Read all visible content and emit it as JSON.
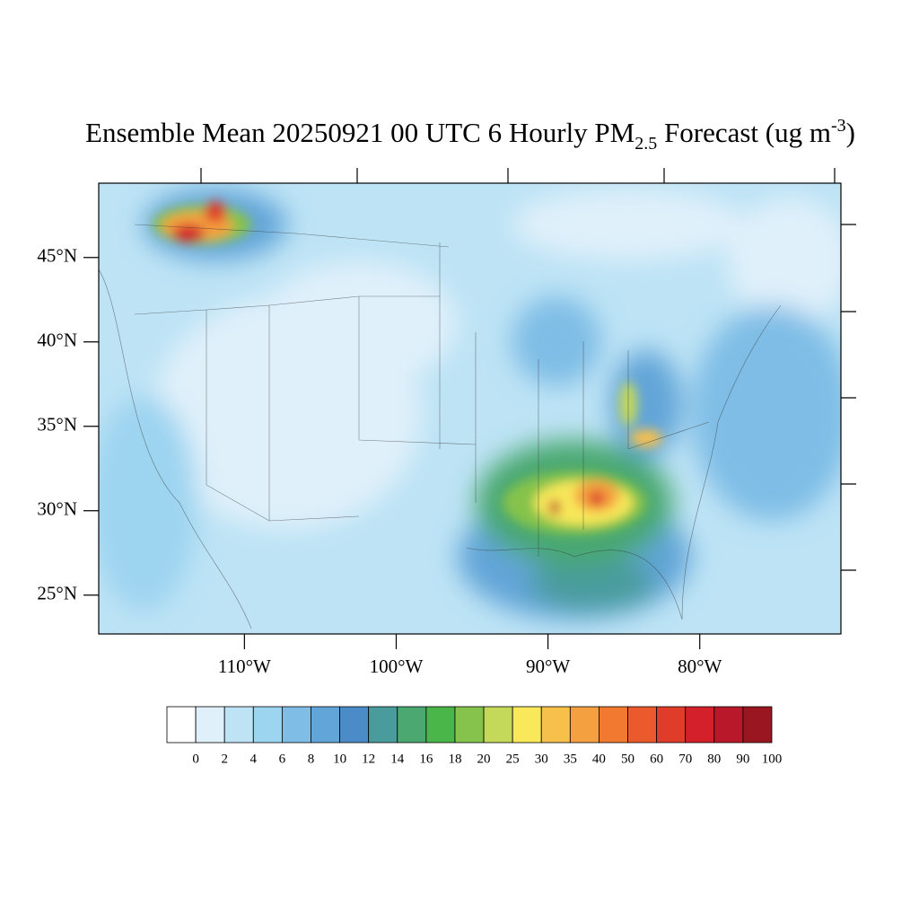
{
  "title": {
    "main": "Ensemble Mean 20250921 00 UTC 6 Hourly PM",
    "sub": "2.5",
    "middle": " Forecast (ug m",
    "sup": "-3",
    "end": ")"
  },
  "map": {
    "xlim": [
      -119.6,
      -70.7
    ],
    "ylim": [
      22.7,
      49.4
    ],
    "xticks": [
      {
        "value": -110,
        "label": "110°W"
      },
      {
        "value": -100,
        "label": "100°W"
      },
      {
        "value": -90,
        "label": "90°W"
      },
      {
        "value": -80,
        "label": "80°W"
      }
    ],
    "yticks": [
      {
        "value": 25,
        "label": "25°N"
      },
      {
        "value": 30,
        "label": "30°N"
      },
      {
        "value": 35,
        "label": "35°N"
      },
      {
        "value": 40,
        "label": "40°N"
      },
      {
        "value": 45,
        "label": "45°N"
      }
    ]
  },
  "colorbar": {
    "levels": [
      0,
      2,
      4,
      6,
      8,
      10,
      12,
      14,
      16,
      18,
      20,
      25,
      30,
      35,
      40,
      50,
      60,
      70,
      80,
      90,
      100
    ],
    "colors": [
      "#ffffff",
      "#dff0fa",
      "#bde3f5",
      "#9dd4f0",
      "#7fbde6",
      "#62a5d8",
      "#4a8bc8",
      "#4a9c9c",
      "#4aa870",
      "#4ab548",
      "#86c34c",
      "#c4d85a",
      "#f8e85a",
      "#f7c04a",
      "#f5a040",
      "#f27a30",
      "#eb5a2c",
      "#e03c2a",
      "#d4202a",
      "#b8182a",
      "#9a1620"
    ]
  }
}
